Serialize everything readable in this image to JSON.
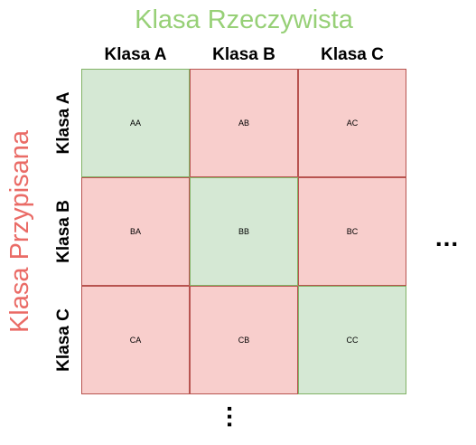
{
  "diagram": {
    "actual_label": "Klasa Rzeczywista",
    "assigned_label": "Klasa Przypisana",
    "columns": [
      "Klasa A",
      "Klasa B",
      "Klasa C"
    ],
    "rows": [
      "Klasa A",
      "Klasa B",
      "Klasa C"
    ],
    "cells": [
      [
        "AA",
        "AB",
        "AC"
      ],
      [
        "BA",
        "BB",
        "BC"
      ],
      [
        "CA",
        "CB",
        "CC"
      ]
    ],
    "more_columns": "...",
    "more_rows": "..."
  },
  "colors": {
    "actual_label": "#97d077",
    "assigned_label": "#ea6b66",
    "match_fill": "#d5e8d4",
    "match_border": "#82b366",
    "mismatch_fill": "#f8cecc",
    "mismatch_border": "#b85450"
  }
}
